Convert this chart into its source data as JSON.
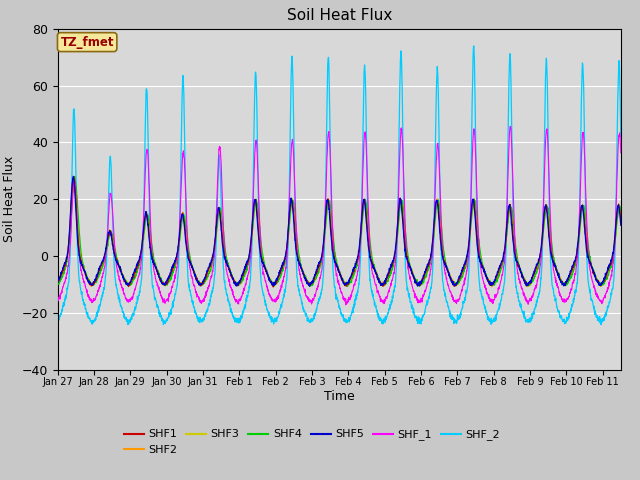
{
  "title": "Soil Heat Flux",
  "ylabel": "Soil Heat Flux",
  "xlabel": "Time",
  "annotation": "TZ_fmet",
  "ylim": [
    -40,
    80
  ],
  "series_colors": {
    "SHF1": "#cc0000",
    "SHF2": "#ff9900",
    "SHF3": "#cccc00",
    "SHF4": "#00cc00",
    "SHF5": "#0000cc",
    "SHF_1": "#ff00ff",
    "SHF_2": "#00ccff"
  },
  "xtick_labels": [
    "Jan 27",
    "Jan 28",
    "Jan 29",
    "Jan 30",
    "Jan 31",
    "Feb 1",
    "Feb 2",
    "Feb 3",
    "Feb 4",
    "Feb 5",
    "Feb 6",
    "Feb 7",
    "Feb 8",
    "Feb 9",
    "Feb 10",
    "Feb 11"
  ],
  "background_color": "#c8c8c8",
  "plot_bg_color": "#d8d8d8",
  "title_fontsize": 11,
  "axis_fontsize": 9,
  "legend_fontsize": 8,
  "n_days": 15.5,
  "pts_per_day": 144,
  "day_peak_amps_shf2": [
    57,
    40,
    64,
    68,
    40,
    70,
    75,
    75,
    72,
    77,
    71,
    79,
    76,
    74,
    73
  ],
  "day_peak_amps_shf_1": [
    28,
    23,
    39,
    38,
    40,
    42,
    42,
    45,
    45,
    46,
    41,
    46,
    47,
    46,
    45
  ],
  "day_peak_amps_others": [
    28,
    9,
    15,
    15,
    17,
    20,
    20,
    20,
    20,
    20,
    20,
    20,
    18,
    18,
    18
  ],
  "night_base_shf2": -23,
  "night_base_shf_1": -16,
  "night_base_others": -10
}
